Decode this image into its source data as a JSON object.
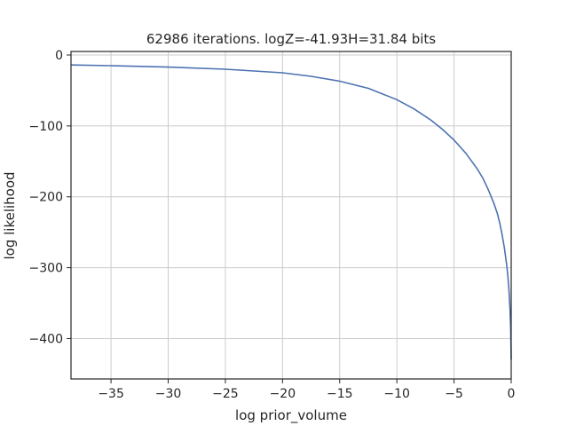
{
  "chart_data": {
    "type": "line",
    "title": "62986 iterations. logZ=-41.93H=31.84 bits",
    "xlabel": "log prior_volume",
    "ylabel": "log likelihood",
    "xlim": [
      -38.5,
      0
    ],
    "ylim": [
      -457,
      5
    ],
    "xticks": [
      -35,
      -30,
      -25,
      -20,
      -15,
      -10,
      -5,
      0
    ],
    "xtick_labels": [
      "−35",
      "−30",
      "−25",
      "−20",
      "−15",
      "−10",
      "−5",
      "0"
    ],
    "yticks": [
      0,
      -100,
      -200,
      -300,
      -400
    ],
    "ytick_labels": [
      "0",
      "−100",
      "−200",
      "−300",
      "−400"
    ],
    "grid": true,
    "line_color": "#4c72b0",
    "grid_color": "#cccccc",
    "series": [
      {
        "x": [
          -38.5,
          -35,
          -30,
          -25,
          -20,
          -17.5,
          -15,
          -12.5,
          -10,
          -8.5,
          -7,
          -6,
          -5,
          -4,
          -3,
          -2.5,
          -2,
          -1.5,
          -1.2,
          -1,
          -0.8,
          -0.6,
          -0.4,
          -0.3,
          -0.2,
          -0.1,
          -0.05,
          0
        ],
        "y": [
          -14,
          -15,
          -17,
          -20,
          -25,
          -30,
          -37,
          -47,
          -63,
          -76,
          -92,
          -105,
          -120,
          -138,
          -160,
          -173,
          -190,
          -210,
          -224,
          -237,
          -253,
          -272,
          -295,
          -310,
          -330,
          -360,
          -385,
          -430
        ]
      }
    ]
  }
}
